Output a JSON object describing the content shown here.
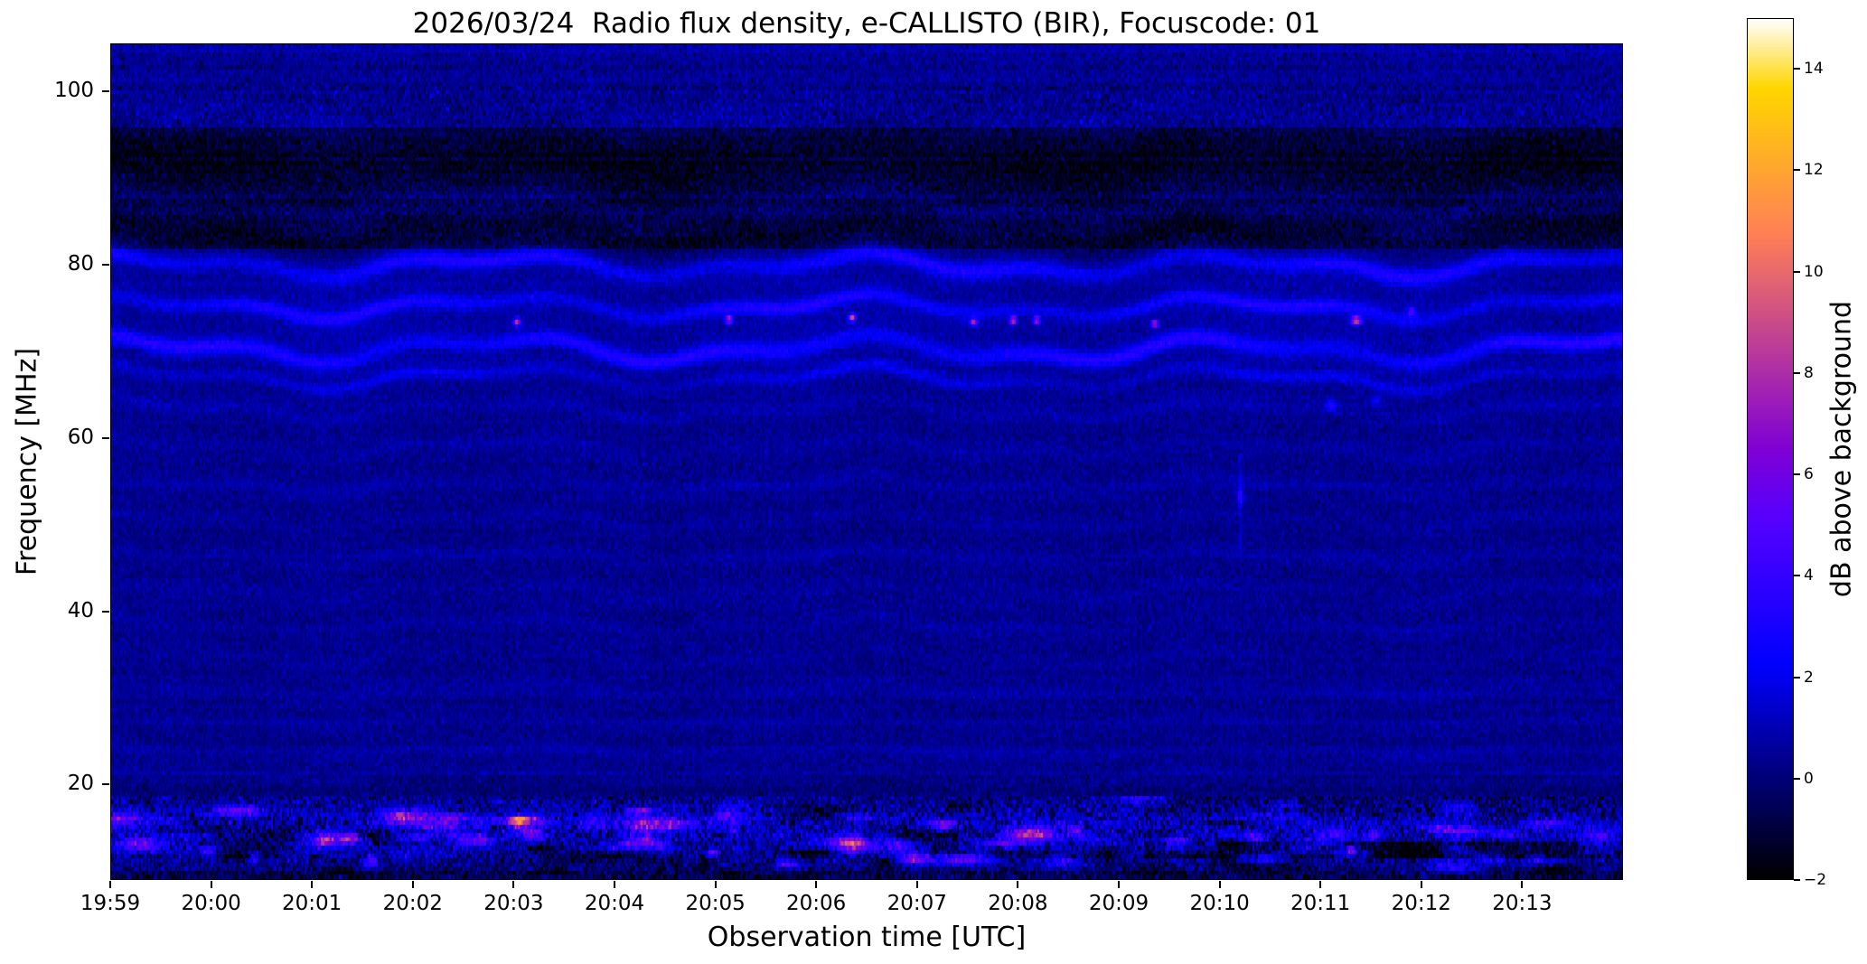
{
  "chart_data": {
    "type": "heatmap",
    "title": "2026/03/24  Radio flux density, e-CALLISTO (BIR), Focuscode: 01",
    "xlabel": "Observation time [UTC]",
    "ylabel": "Frequency [MHz]",
    "colorbar_label": "dB above background",
    "colormap": "gnuplot2",
    "value_range": [
      -2,
      15
    ],
    "background_db": 0.32,
    "freq_top_mhz": 105.5,
    "freq_bottom_mhz": 9.0,
    "x_start_utc": "19:59",
    "x_end_utc": "20:14",
    "x_span_minutes": 15,
    "x_ticks": [
      "19:59",
      "20:00",
      "20:01",
      "20:02",
      "20:03",
      "20:04",
      "20:05",
      "20:06",
      "20:07",
      "20:08",
      "20:09",
      "20:10",
      "20:11",
      "20:12",
      "20:13"
    ],
    "y_ticks": [
      100,
      80,
      60,
      40,
      20
    ],
    "colorbar_ticks": [
      {
        "value": 14,
        "label": "14"
      },
      {
        "value": 12,
        "label": "12"
      },
      {
        "value": 10,
        "label": "10"
      },
      {
        "value": 8,
        "label": "8"
      },
      {
        "value": 6,
        "label": "6"
      },
      {
        "value": 4,
        "label": "4"
      },
      {
        "value": 2,
        "label": "2"
      },
      {
        "value": 0,
        "label": "0"
      },
      {
        "value": -2,
        "label": "−2"
      }
    ],
    "ripple_bands": [
      [
        80.0,
        2.4,
        0.65,
        1.0
      ],
      [
        75.2,
        2.2,
        0.55,
        1.0
      ],
      [
        70.3,
        2.7,
        0.65,
        1.1
      ],
      [
        67.0,
        1.3,
        0.5,
        1.0
      ],
      [
        74.5,
        0.55,
        6.0,
        0.5
      ],
      [
        83.3,
        -1.0,
        1.1,
        1.0
      ],
      [
        87.0,
        0.45,
        0.8,
        1.0
      ],
      [
        91.8,
        -0.9,
        2.4,
        0.9
      ],
      [
        97.6,
        0.45,
        1.3,
        0.6
      ],
      [
        63.3,
        0.5,
        0.55,
        0.9
      ],
      [
        58.9,
        0.38,
        0.55,
        0.85
      ],
      [
        54.6,
        0.45,
        0.55,
        0.8
      ],
      [
        50.4,
        0.34,
        0.55,
        0.75
      ],
      [
        46.3,
        0.4,
        0.55,
        0.7
      ],
      [
        42.3,
        0.34,
        0.55,
        0.65
      ],
      [
        38.4,
        0.4,
        0.55,
        0.6
      ],
      [
        34.6,
        0.32,
        0.55,
        0.55
      ],
      [
        30.9,
        0.38,
        0.55,
        0.5
      ],
      [
        27.3,
        0.32,
        0.55,
        0.45
      ],
      [
        23.8,
        0.42,
        0.55,
        0.4
      ],
      [
        20.9,
        0.4,
        0.55,
        0.35
      ]
    ],
    "dark_band": {
      "f_low": 82,
      "f_high": 96,
      "depth_db": 0.9
    },
    "top_band": {
      "f_low": 100.5,
      "f_high": 105.5
    },
    "bottom_band": {
      "f_low": 9.0,
      "f_high": 18.6,
      "peak1_mhz": 15.3,
      "peak2_mhz": 12.2,
      "typical_db": 3.5,
      "dark_stripe": {
        "after_min": 10.25,
        "f_low": 11.55,
        "f_high": 13.35
      }
    },
    "bright_spots": [
      {
        "t": 4.02,
        "f": 73.4,
        "db": 8.0
      },
      {
        "t": 6.12,
        "f": 73.7,
        "db": 7.5
      },
      {
        "t": 7.35,
        "f": 73.9,
        "db": 8.5
      },
      {
        "t": 8.55,
        "f": 73.4,
        "db": 7.0
      },
      {
        "t": 8.95,
        "f": 73.6,
        "db": 8.5
      },
      {
        "t": 9.18,
        "f": 73.6,
        "db": 7.0
      },
      {
        "t": 10.35,
        "f": 73.2,
        "db": 8.0
      },
      {
        "t": 12.35,
        "f": 73.6,
        "db": 9.0,
        "dt": 0.05
      },
      {
        "t": 12.9,
        "f": 74.6,
        "db": 4.5
      },
      {
        "t": 11.2,
        "f": 53.2,
        "db": 2.8,
        "df": 0.9
      },
      {
        "t": 12.1,
        "f": 63.8,
        "db": 2.4,
        "dt": 0.06,
        "df": 0.7
      },
      {
        "t": 12.55,
        "f": 64.3,
        "db": 2.0,
        "dt": 0.05,
        "df": 0.6
      },
      {
        "t": 12.3,
        "f": 12.4,
        "db": 6.0,
        "dt": 0.05,
        "df": 0.45
      }
    ],
    "vertical_streaks": [
      {
        "t": 11.2,
        "f_low": 47,
        "f_high": 58,
        "db": 1.3,
        "dt": 0.02
      }
    ]
  }
}
